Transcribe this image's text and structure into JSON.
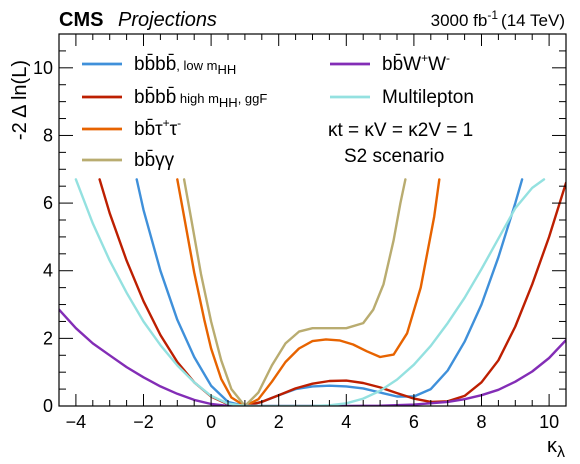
{
  "header": {
    "experiment": "CMS",
    "label": "Projections",
    "luminosity": "3000 fb",
    "luminosity_sup": "-1",
    "energy": "(14 TeV)"
  },
  "annotations": {
    "couplings": "κt = κV = κ2V = 1",
    "scenario": "S2 scenario"
  },
  "chart_data": {
    "type": "line",
    "xlabel": "κλ",
    "ylabel": "-2 Δ ln(L)",
    "xlim": [
      -4.5,
      10.5
    ],
    "ylim": [
      0,
      11
    ],
    "xticks": [
      -4,
      -2,
      0,
      2,
      4,
      6,
      8,
      10
    ],
    "yticks": [
      0,
      2,
      4,
      6,
      8,
      10
    ],
    "series": [
      {
        "name": "bb̄bb̄, low mHH",
        "color": "#3f90da",
        "x": [
          -2.2,
          -2.0,
          -1.5,
          -1.0,
          -0.5,
          0.0,
          0.5,
          1.0,
          1.5,
          2.0,
          2.5,
          3.0,
          3.5,
          4.0,
          4.5,
          5.0,
          5.5,
          6.0,
          6.5,
          7.0,
          7.5,
          8.0,
          8.5,
          9.0,
          9.2
        ],
        "y": [
          6.7,
          5.8,
          4.0,
          2.55,
          1.45,
          0.6,
          0.12,
          0.0,
          0.12,
          0.32,
          0.5,
          0.58,
          0.6,
          0.58,
          0.52,
          0.4,
          0.28,
          0.28,
          0.5,
          1.05,
          1.9,
          3.0,
          4.4,
          6.0,
          6.7
        ]
      },
      {
        "name": "bb̄bb̄ high mHH, ggF",
        "color": "#bd1f01",
        "x": [
          -3.3,
          -3.0,
          -2.5,
          -2.0,
          -1.5,
          -1.0,
          -0.5,
          0.0,
          0.5,
          1.0,
          1.5,
          2.0,
          2.5,
          3.0,
          3.5,
          4.0,
          4.5,
          5.0,
          5.5,
          6.0,
          6.5,
          7.0,
          7.5,
          8.0,
          8.5,
          9.0,
          9.5,
          10.0,
          10.5
        ],
        "y": [
          6.7,
          5.7,
          4.3,
          3.1,
          2.1,
          1.3,
          0.7,
          0.28,
          0.05,
          0.0,
          0.12,
          0.32,
          0.52,
          0.66,
          0.74,
          0.75,
          0.68,
          0.55,
          0.38,
          0.22,
          0.12,
          0.14,
          0.3,
          0.7,
          1.35,
          2.35,
          3.6,
          5.0,
          6.6
        ]
      },
      {
        "name": "bb̄τ+τ-",
        "color": "#e76300",
        "x": [
          -1.0,
          -0.8,
          -0.5,
          -0.2,
          0.0,
          0.3,
          0.6,
          1.0,
          1.4,
          1.8,
          2.2,
          2.6,
          3.0,
          3.4,
          3.8,
          4.2,
          4.6,
          5.0,
          5.4,
          5.8,
          6.2,
          6.6,
          6.75
        ],
        "y": [
          6.7,
          5.6,
          3.95,
          2.55,
          1.7,
          0.8,
          0.25,
          0.0,
          0.2,
          0.72,
          1.3,
          1.7,
          1.92,
          1.97,
          1.94,
          1.82,
          1.62,
          1.45,
          1.52,
          2.15,
          3.5,
          5.6,
          6.7
        ]
      },
      {
        "name": "bb̄γγ",
        "color": "#b9ac70",
        "x": [
          -0.8,
          -0.6,
          -0.3,
          0.0,
          0.3,
          0.6,
          1.0,
          1.4,
          1.8,
          2.2,
          2.6,
          3.0,
          3.5,
          4.0,
          4.5,
          4.8,
          5.1,
          5.4,
          5.6,
          5.75
        ],
        "y": [
          6.7,
          5.6,
          3.9,
          2.5,
          1.35,
          0.5,
          0.0,
          0.4,
          1.2,
          1.85,
          2.2,
          2.3,
          2.3,
          2.3,
          2.45,
          2.85,
          3.6,
          4.9,
          6.0,
          6.7
        ]
      },
      {
        "name": "bb̄W+W-",
        "color": "#832db6",
        "x": [
          -4.5,
          -4.0,
          -3.5,
          -3.0,
          -2.5,
          -2.0,
          -1.5,
          -1.0,
          -0.5,
          0.0,
          0.5,
          1.0,
          1.5,
          2.0,
          2.5,
          3.0,
          4.0,
          5.0,
          6.0,
          7.0,
          7.5,
          8.0,
          8.5,
          9.0,
          9.5,
          10.0,
          10.5
        ],
        "y": [
          2.85,
          2.3,
          1.85,
          1.5,
          1.15,
          0.85,
          0.58,
          0.36,
          0.18,
          0.06,
          0.0,
          0.0,
          0.0,
          0.0,
          0.0,
          0.0,
          0.0,
          0.01,
          0.04,
          0.12,
          0.2,
          0.32,
          0.48,
          0.72,
          1.02,
          1.42,
          1.95
        ]
      },
      {
        "name": "Multilepton",
        "color": "#94e1e0",
        "x": [
          -4.0,
          -3.5,
          -3.0,
          -2.5,
          -2.0,
          -1.5,
          -1.0,
          -0.5,
          0.0,
          0.5,
          1.0,
          1.5,
          2.0,
          2.5,
          3.0,
          3.5,
          4.0,
          4.5,
          5.0,
          5.5,
          6.0,
          6.5,
          7.0,
          7.5,
          8.0,
          8.5,
          9.0,
          9.5,
          9.85
        ],
        "y": [
          6.7,
          5.4,
          4.3,
          3.35,
          2.5,
          1.8,
          1.2,
          0.7,
          0.3,
          0.07,
          0.0,
          0.0,
          0.0,
          0.0,
          0.0,
          0.02,
          0.08,
          0.22,
          0.45,
          0.78,
          1.22,
          1.78,
          2.45,
          3.2,
          4.05,
          4.95,
          5.85,
          6.45,
          6.7
        ]
      }
    ]
  },
  "legend": {
    "items": [
      {
        "base": "bb̄bb̄",
        "sub": ", low m",
        "subsub": "HH"
      },
      {
        "base": "bb̄bb̄",
        "sub": " high m",
        "subsub": "HH",
        "tail": ", ggF"
      },
      {
        "base": "bb̄τ",
        "sup1": "+",
        "mid": "τ",
        "sup2": "-"
      },
      {
        "base": "bb̄γγ"
      },
      {
        "base": "bb̄W",
        "sup1": "+",
        "mid": "W",
        "sup2": "-"
      },
      {
        "base": "Multilepton"
      }
    ]
  }
}
